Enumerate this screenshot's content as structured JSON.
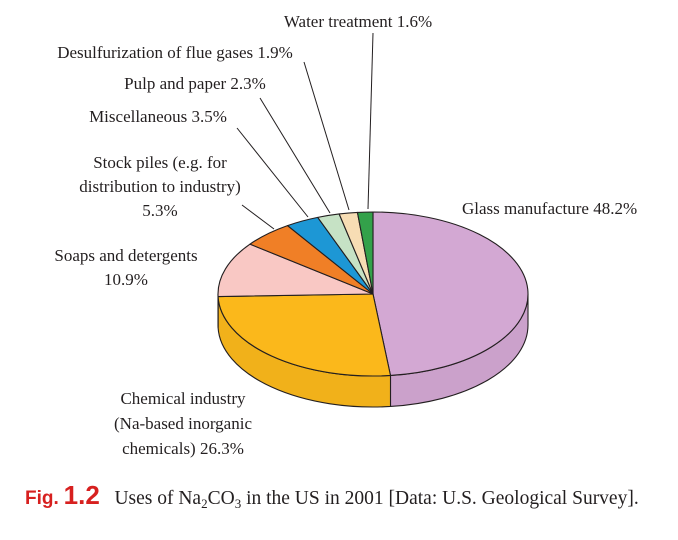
{
  "chart_data": {
    "type": "pie",
    "style": "3d",
    "title": "",
    "slices": [
      {
        "id": "glass",
        "label": [
          "Glass manufacture 48.2%"
        ],
        "value": 48.2,
        "color": "#d3a8d3"
      },
      {
        "id": "chemical",
        "label": [
          "Chemical industry",
          "(Na-based inorganic",
          "chemicals) 26.3%"
        ],
        "value": 26.3,
        "color": "#fbb81b"
      },
      {
        "id": "soaps",
        "label": [
          "Soaps and detergents",
          "10.9%"
        ],
        "value": 10.9,
        "color": "#f9c8c4"
      },
      {
        "id": "stock",
        "label": [
          "Stock piles (e.g. for",
          "distribution to industry)",
          "5.3%"
        ],
        "value": 5.3,
        "color": "#f07f26"
      },
      {
        "id": "misc",
        "label": [
          "Miscellaneous 3.5%"
        ],
        "value": 3.5,
        "color": "#1d97d5"
      },
      {
        "id": "pulp",
        "label": [
          "Pulp and paper 2.3%"
        ],
        "value": 2.3,
        "color": "#c6e2c5"
      },
      {
        "id": "desulf",
        "label": [
          "Desulfurization of flue gases 1.9%"
        ],
        "value": 1.9,
        "color": "#f7ddb4"
      },
      {
        "id": "water",
        "label": [
          "Water treatment 1.6%"
        ],
        "value": 1.6,
        "color": "#33a14a"
      }
    ]
  },
  "caption": {
    "fig_label": "Fig.",
    "fig_number": "1.2",
    "text_before": "Uses of Na",
    "subscript_1": "2",
    "text_mid": "CO",
    "subscript_2": "3",
    "text_after": " in the US in 2001 [Data: U.S. Geological Survey]."
  }
}
